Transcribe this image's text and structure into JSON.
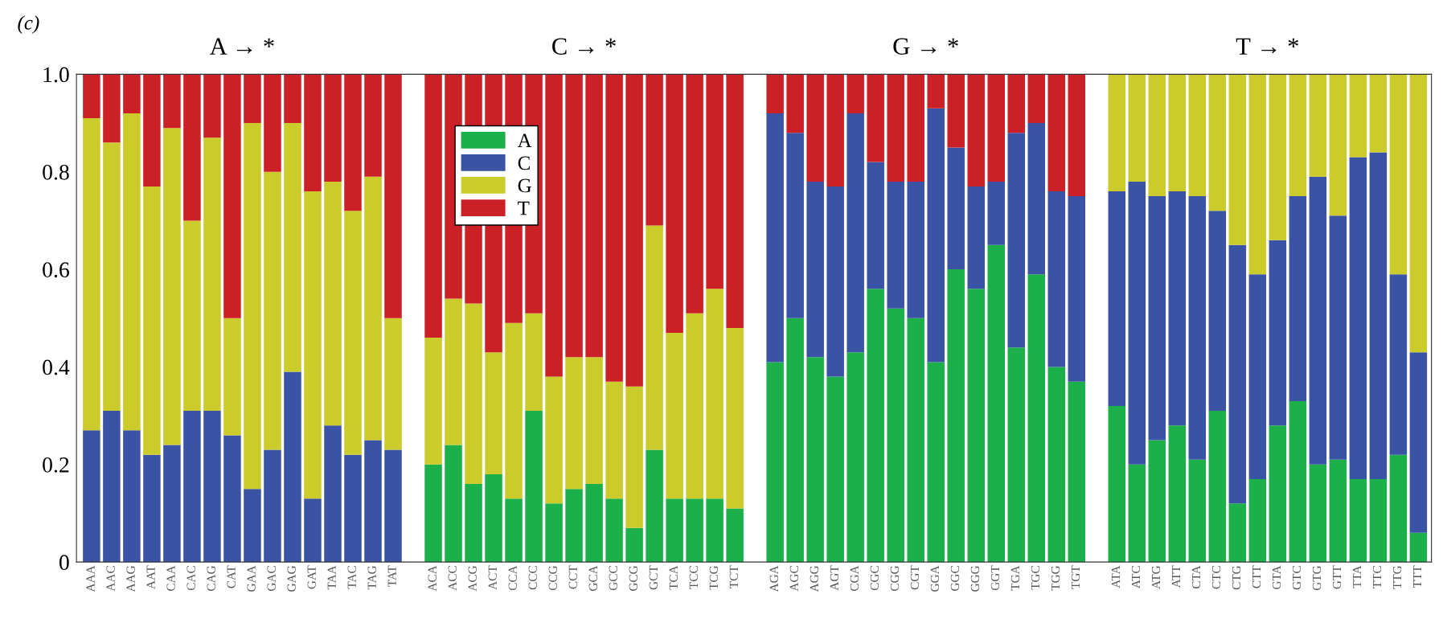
{
  "chart_data": {
    "type": "bar",
    "stacked": true,
    "title": "(c)",
    "annotations": [
      "A → *",
      "C → *",
      "G → *",
      "T → *"
    ],
    "categories": [
      "AAA",
      "AAC",
      "AAG",
      "AAT",
      "CAA",
      "CAC",
      "CAG",
      "CAT",
      "GAA",
      "GAC",
      "GAG",
      "GAT",
      "TAA",
      "TAC",
      "TAG",
      "TAT",
      null,
      "ACA",
      "ACC",
      "ACG",
      "ACT",
      "CCA",
      "CCC",
      "CCG",
      "CCT",
      "GCA",
      "GCC",
      "GCG",
      "GCT",
      "TCA",
      "TCC",
      "TCG",
      "TCT",
      null,
      "AGA",
      "AGC",
      "AGG",
      "AGT",
      "CGA",
      "CGC",
      "CGG",
      "CGT",
      "GGA",
      "GGC",
      "GGG",
      "GGT",
      "TGA",
      "TGC",
      "TGG",
      "TGT",
      null,
      "ATA",
      "ATC",
      "ATG",
      "ATT",
      "CTA",
      "CTC",
      "CTG",
      "CTT",
      "GTA",
      "GTC",
      "GTG",
      "GTT",
      "TTA",
      "TTC",
      "TTG",
      "TTT"
    ],
    "series": [
      {
        "name": "A",
        "color": "#1bb04a",
        "values": [
          0,
          0,
          0,
          0,
          0,
          0,
          0,
          0,
          0,
          0,
          0,
          0,
          0,
          0,
          0,
          0,
          null,
          0.2,
          0.24,
          0.16,
          0.18,
          0.13,
          0.31,
          0.12,
          0.15,
          0.16,
          0.13,
          0.07,
          0.23,
          0.13,
          0.13,
          0.13,
          0.11,
          null,
          0.41,
          0.5,
          0.42,
          0.38,
          0.43,
          0.56,
          0.52,
          0.5,
          0.41,
          0.6,
          0.56,
          0.65,
          0.44,
          0.59,
          0.4,
          0.37,
          null,
          0.32,
          0.2,
          0.25,
          0.28,
          0.21,
          0.31,
          0.12,
          0.17,
          0.28,
          0.33,
          0.2,
          0.21,
          0.17,
          0.17,
          0.22,
          0.06
        ]
      },
      {
        "name": "C",
        "color": "#3a53a4",
        "values": [
          0.27,
          0.31,
          0.27,
          0.22,
          0.24,
          0.31,
          0.31,
          0.26,
          0.15,
          0.23,
          0.39,
          0.13,
          0.28,
          0.22,
          0.25,
          0.23,
          null,
          0,
          0,
          0,
          0,
          0,
          0,
          0,
          0,
          0,
          0,
          0,
          0,
          0,
          0,
          0,
          0,
          null,
          0.51,
          0.38,
          0.36,
          0.39,
          0.49,
          0.26,
          0.26,
          0.28,
          0.52,
          0.25,
          0.21,
          0.13,
          0.44,
          0.31,
          0.36,
          0.38,
          null,
          0.44,
          0.58,
          0.5,
          0.48,
          0.54,
          0.41,
          0.53,
          0.42,
          0.38,
          0.42,
          0.59,
          0.5,
          0.66,
          0.67,
          0.37,
          0.37
        ]
      },
      {
        "name": "G",
        "color": "#cbcb2b",
        "values": [
          0.64,
          0.55,
          0.65,
          0.55,
          0.65,
          0.39,
          0.56,
          0.24,
          0.75,
          0.57,
          0.51,
          0.63,
          0.5,
          0.5,
          0.54,
          0.27,
          null,
          0.26,
          0.3,
          0.37,
          0.25,
          0.36,
          0.2,
          0.26,
          0.27,
          0.26,
          0.24,
          0.29,
          0.46,
          0.34,
          0.38,
          0.43,
          0.37,
          null,
          0,
          0,
          0,
          0,
          0,
          0,
          0,
          0,
          0,
          0,
          0,
          0,
          0,
          0,
          0,
          0,
          null,
          0.24,
          0.22,
          0.25,
          0.24,
          0.25,
          0.28,
          0.35,
          0.41,
          0.34,
          0.25,
          0.21,
          0.29,
          0.17,
          0.16,
          0.41,
          0.57
        ]
      },
      {
        "name": "T",
        "color": "#cc2027",
        "values": [
          0.09,
          0.14,
          0.08,
          0.23,
          0.11,
          0.3,
          0.13,
          0.5,
          0.1,
          0.2,
          0.1,
          0.24,
          0.22,
          0.28,
          0.21,
          0.5,
          null,
          0.54,
          0.46,
          0.47,
          0.57,
          0.51,
          0.49,
          0.62,
          0.58,
          0.58,
          0.63,
          0.64,
          0.31,
          0.53,
          0.49,
          0.44,
          0.52,
          null,
          0.08,
          0.12,
          0.22,
          0.23,
          0.08,
          0.18,
          0.22,
          0.22,
          0.07,
          0.15,
          0.23,
          0.22,
          0.12,
          0.1,
          0.24,
          0.25,
          null,
          0,
          0,
          0,
          0,
          0,
          0,
          0,
          0,
          0,
          0,
          0,
          0,
          0,
          0,
          0,
          0
        ]
      }
    ],
    "ylim": [
      0,
      1.0
    ],
    "yticks": [
      0,
      {
        "value": 0.2,
        "label": "0.2"
      },
      {
        "value": 0.4,
        "label": "0.4"
      },
      {
        "value": 0.6,
        "label": "0.6"
      },
      {
        "value": 0.8,
        "label": "0.8"
      },
      {
        "value": 1.0,
        "label": "1.0"
      }
    ],
    "grid": false,
    "legend": "top left"
  }
}
